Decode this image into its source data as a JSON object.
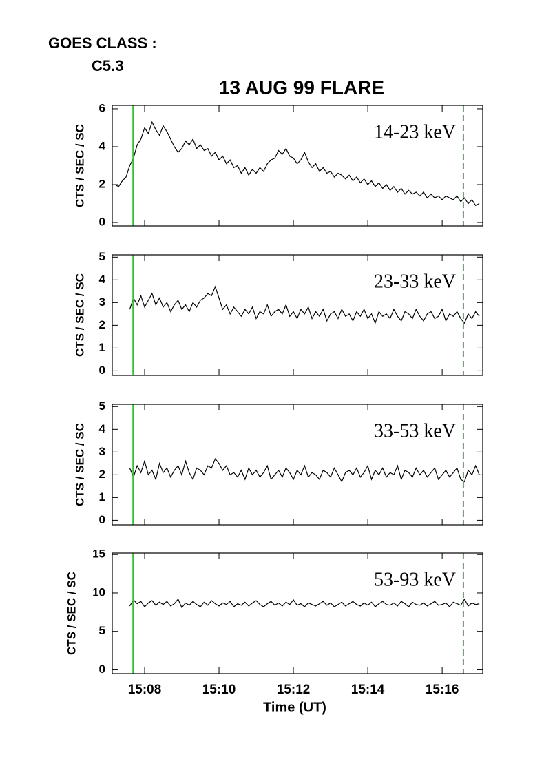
{
  "header": {
    "label": "GOES CLASS :",
    "value": "C5.3"
  },
  "chart_data": [
    {
      "type": "line",
      "title": "13 AUG 99 FLARE",
      "ylabel": "CTS / SEC / SC",
      "annotation": "14-23 keV",
      "x": [
        7.2,
        7.3,
        7.4,
        7.5,
        7.6,
        7.7,
        7.8,
        7.9,
        8.0,
        8.1,
        8.2,
        8.3,
        8.4,
        8.5,
        8.6,
        8.7,
        8.8,
        8.9,
        9.0,
        9.1,
        9.2,
        9.3,
        9.4,
        9.5,
        9.6,
        9.7,
        9.8,
        9.9,
        10.0,
        10.1,
        10.2,
        10.3,
        10.4,
        10.5,
        10.6,
        10.7,
        10.8,
        10.9,
        11.0,
        11.1,
        11.2,
        11.3,
        11.4,
        11.5,
        11.6,
        11.7,
        11.8,
        11.9,
        12.0,
        12.1,
        12.2,
        12.3,
        12.4,
        12.5,
        12.6,
        12.7,
        12.8,
        12.9,
        13.0,
        13.1,
        13.2,
        13.3,
        13.4,
        13.5,
        13.6,
        13.7,
        13.8,
        13.9,
        14.0,
        14.1,
        14.2,
        14.3,
        14.4,
        14.5,
        14.6,
        14.7,
        14.8,
        14.9,
        15.0,
        15.1,
        15.2,
        15.3,
        15.4,
        15.5,
        15.6,
        15.7,
        15.8,
        15.9,
        16.0,
        16.1,
        16.2,
        16.3,
        16.4,
        16.5,
        16.6,
        16.7,
        16.8,
        16.9,
        17.0
      ],
      "values": [
        2.0,
        1.9,
        2.2,
        2.4,
        3.0,
        3.4,
        4.1,
        4.4,
        5.0,
        4.7,
        5.3,
        4.9,
        4.6,
        5.1,
        4.8,
        4.4,
        4.0,
        3.7,
        3.9,
        4.3,
        4.1,
        4.4,
        3.9,
        4.1,
        3.8,
        3.9,
        3.5,
        3.7,
        3.3,
        3.5,
        3.1,
        3.3,
        2.9,
        3.0,
        2.6,
        2.9,
        2.5,
        2.8,
        2.6,
        2.9,
        2.7,
        3.1,
        3.3,
        3.4,
        3.8,
        3.6,
        3.9,
        3.5,
        3.4,
        3.1,
        3.3,
        3.7,
        3.2,
        2.9,
        3.1,
        2.7,
        2.9,
        2.6,
        2.7,
        2.4,
        2.6,
        2.5,
        2.3,
        2.5,
        2.2,
        2.4,
        2.1,
        2.3,
        2.0,
        2.2,
        1.9,
        2.1,
        1.8,
        2.0,
        1.7,
        1.9,
        1.6,
        1.8,
        1.5,
        1.7,
        1.5,
        1.6,
        1.4,
        1.6,
        1.3,
        1.5,
        1.3,
        1.4,
        1.2,
        1.4,
        1.3,
        1.2,
        1.4,
        1.1,
        1.3,
        1.0,
        1.2,
        0.9,
        1.0
      ],
      "color": "#000000",
      "xlim": [
        7.13,
        17.09
      ],
      "ylim": [
        -0.18,
        6.18
      ],
      "yticks": [
        0,
        2,
        4,
        6
      ],
      "xticks": [
        {
          "value": 8,
          "label": "15:08"
        },
        {
          "value": 10,
          "label": "15:10"
        },
        {
          "value": 12,
          "label": "15:12"
        },
        {
          "value": 14,
          "label": "15:14"
        },
        {
          "value": 16,
          "label": "15:16"
        }
      ],
      "xtick_labels": false,
      "marker_color": "#22cc22",
      "markers": [
        {
          "x": 7.69,
          "style": "solid"
        },
        {
          "x": 16.57,
          "style": "dashed"
        }
      ]
    },
    {
      "type": "line",
      "ylabel": "CTS / SEC / SC",
      "annotation": "23-33 keV",
      "x": [
        7.6,
        7.7,
        7.8,
        7.9,
        8.0,
        8.1,
        8.2,
        8.3,
        8.4,
        8.5,
        8.6,
        8.7,
        8.8,
        8.9,
        9.0,
        9.1,
        9.2,
        9.3,
        9.4,
        9.5,
        9.6,
        9.7,
        9.8,
        9.9,
        10.0,
        10.1,
        10.2,
        10.3,
        10.4,
        10.5,
        10.6,
        10.7,
        10.8,
        10.9,
        11.0,
        11.1,
        11.2,
        11.3,
        11.4,
        11.5,
        11.6,
        11.7,
        11.8,
        11.9,
        12.0,
        12.1,
        12.2,
        12.3,
        12.4,
        12.5,
        12.6,
        12.7,
        12.8,
        12.9,
        13.0,
        13.1,
        13.2,
        13.3,
        13.4,
        13.5,
        13.6,
        13.7,
        13.8,
        13.9,
        14.0,
        14.1,
        14.2,
        14.3,
        14.4,
        14.5,
        14.6,
        14.7,
        14.8,
        14.9,
        15.0,
        15.1,
        15.2,
        15.3,
        15.4,
        15.5,
        15.6,
        15.7,
        15.8,
        15.9,
        16.0,
        16.1,
        16.2,
        16.3,
        16.4,
        16.5,
        16.6,
        16.7,
        16.8,
        16.9,
        17.0
      ],
      "values": [
        2.7,
        3.2,
        2.9,
        3.3,
        2.8,
        3.1,
        3.4,
        2.9,
        3.2,
        2.8,
        3.0,
        2.6,
        2.9,
        3.1,
        2.7,
        2.9,
        2.6,
        3.0,
        2.8,
        3.1,
        3.2,
        3.4,
        3.3,
        3.7,
        3.2,
        2.7,
        2.9,
        2.5,
        2.8,
        2.6,
        2.4,
        2.7,
        2.5,
        2.8,
        2.3,
        2.6,
        2.5,
        2.9,
        2.4,
        2.6,
        2.7,
        2.5,
        2.9,
        2.4,
        2.6,
        2.3,
        2.7,
        2.5,
        2.8,
        2.3,
        2.6,
        2.4,
        2.7,
        2.2,
        2.5,
        2.6,
        2.3,
        2.7,
        2.4,
        2.5,
        2.2,
        2.6,
        2.4,
        2.7,
        2.3,
        2.5,
        2.1,
        2.6,
        2.4,
        2.5,
        2.3,
        2.7,
        2.4,
        2.2,
        2.6,
        2.5,
        2.3,
        2.7,
        2.4,
        2.2,
        2.5,
        2.6,
        2.3,
        2.4,
        2.7,
        2.2,
        2.5,
        2.4,
        2.6,
        2.3,
        2.1,
        2.5,
        2.3,
        2.6,
        2.4
      ],
      "color": "#000000",
      "xlim": [
        7.13,
        17.09
      ],
      "ylim": [
        -0.2,
        5.1
      ],
      "yticks": [
        0,
        1,
        2,
        3,
        4,
        5
      ],
      "xticks": [
        {
          "value": 8,
          "label": "15:08"
        },
        {
          "value": 10,
          "label": "15:10"
        },
        {
          "value": 12,
          "label": "15:12"
        },
        {
          "value": 14,
          "label": "15:14"
        },
        {
          "value": 16,
          "label": "15:16"
        }
      ],
      "xtick_labels": false,
      "marker_color": "#22cc22",
      "markers": [
        {
          "x": 7.69,
          "style": "solid"
        },
        {
          "x": 16.57,
          "style": "dashed"
        }
      ]
    },
    {
      "type": "line",
      "ylabel": "CTS / SEC / SC",
      "annotation": "33-53 keV",
      "x": [
        7.6,
        7.7,
        7.8,
        7.9,
        8.0,
        8.1,
        8.2,
        8.3,
        8.4,
        8.5,
        8.6,
        8.7,
        8.8,
        8.9,
        9.0,
        9.1,
        9.2,
        9.3,
        9.4,
        9.5,
        9.6,
        9.7,
        9.8,
        9.9,
        10.0,
        10.1,
        10.2,
        10.3,
        10.4,
        10.5,
        10.6,
        10.7,
        10.8,
        10.9,
        11.0,
        11.1,
        11.2,
        11.3,
        11.4,
        11.5,
        11.6,
        11.7,
        11.8,
        11.9,
        12.0,
        12.1,
        12.2,
        12.3,
        12.4,
        12.5,
        12.6,
        12.7,
        12.8,
        12.9,
        13.0,
        13.1,
        13.2,
        13.3,
        13.4,
        13.5,
        13.6,
        13.7,
        13.8,
        13.9,
        14.0,
        14.1,
        14.2,
        14.3,
        14.4,
        14.5,
        14.6,
        14.7,
        14.8,
        14.9,
        15.0,
        15.1,
        15.2,
        15.3,
        15.4,
        15.5,
        15.6,
        15.7,
        15.8,
        15.9,
        16.0,
        16.1,
        16.2,
        16.3,
        16.4,
        16.5,
        16.6,
        16.7,
        16.8,
        16.9,
        17.0
      ],
      "values": [
        2.3,
        1.9,
        2.4,
        2.1,
        2.6,
        2.0,
        2.2,
        1.8,
        2.5,
        2.1,
        2.3,
        1.9,
        2.2,
        2.4,
        2.0,
        2.6,
        2.1,
        1.8,
        2.3,
        2.2,
        2.0,
        2.4,
        2.3,
        2.7,
        2.5,
        2.2,
        2.4,
        2.0,
        2.1,
        1.9,
        2.2,
        1.8,
        2.3,
        2.0,
        2.2,
        1.9,
        2.1,
        2.4,
        1.8,
        2.0,
        2.2,
        1.9,
        2.3,
        2.1,
        1.8,
        2.2,
        2.0,
        2.4,
        1.9,
        2.1,
        2.0,
        1.8,
        2.2,
        2.1,
        1.9,
        2.3,
        2.0,
        1.7,
        2.1,
        2.2,
        2.0,
        2.3,
        1.9,
        2.1,
        2.4,
        1.8,
        2.2,
        2.0,
        2.3,
        1.9,
        2.1,
        2.0,
        2.4,
        1.8,
        2.2,
        2.1,
        1.9,
        2.3,
        2.0,
        2.2,
        1.9,
        2.1,
        2.3,
        1.8,
        2.0,
        2.2,
        1.9,
        2.1,
        2.3,
        1.8,
        1.7,
        2.2,
        2.0,
        2.4,
        2.0
      ],
      "color": "#000000",
      "xlim": [
        7.13,
        17.09
      ],
      "ylim": [
        -0.2,
        5.1
      ],
      "yticks": [
        0,
        1,
        2,
        3,
        4,
        5
      ],
      "xticks": [
        {
          "value": 8,
          "label": "15:08"
        },
        {
          "value": 10,
          "label": "15:10"
        },
        {
          "value": 12,
          "label": "15:12"
        },
        {
          "value": 14,
          "label": "15:14"
        },
        {
          "value": 16,
          "label": "15:16"
        }
      ],
      "xtick_labels": false,
      "marker_color": "#22cc22",
      "markers": [
        {
          "x": 7.69,
          "style": "solid"
        },
        {
          "x": 16.57,
          "style": "dashed"
        }
      ]
    },
    {
      "type": "line",
      "ylabel": "CTS / SEC / SC",
      "annotation": "53-93 keV",
      "xlabel": "Time (UT)",
      "x": [
        7.6,
        7.7,
        7.8,
        7.9,
        8.0,
        8.1,
        8.2,
        8.3,
        8.4,
        8.5,
        8.6,
        8.7,
        8.8,
        8.9,
        9.0,
        9.1,
        9.2,
        9.3,
        9.4,
        9.5,
        9.6,
        9.7,
        9.8,
        9.9,
        10.0,
        10.1,
        10.2,
        10.3,
        10.4,
        10.5,
        10.6,
        10.7,
        10.8,
        10.9,
        11.0,
        11.1,
        11.2,
        11.3,
        11.4,
        11.5,
        11.6,
        11.7,
        11.8,
        11.9,
        12.0,
        12.1,
        12.2,
        12.3,
        12.4,
        12.5,
        12.6,
        12.7,
        12.8,
        12.9,
        13.0,
        13.1,
        13.2,
        13.3,
        13.4,
        13.5,
        13.6,
        13.7,
        13.8,
        13.9,
        14.0,
        14.1,
        14.2,
        14.3,
        14.4,
        14.5,
        14.6,
        14.7,
        14.8,
        14.9,
        15.0,
        15.1,
        15.2,
        15.3,
        15.4,
        15.5,
        15.6,
        15.7,
        15.8,
        15.9,
        16.0,
        16.1,
        16.2,
        16.3,
        16.4,
        16.5,
        16.6,
        16.7,
        16.8,
        16.9,
        17.0
      ],
      "values": [
        8.3,
        9.1,
        8.6,
        8.9,
        8.2,
        8.7,
        9.0,
        8.4,
        8.8,
        8.5,
        8.9,
        8.3,
        8.6,
        9.2,
        8.1,
        8.7,
        8.4,
        8.9,
        8.5,
        8.2,
        8.8,
        8.4,
        9.0,
        8.6,
        8.3,
        8.7,
        8.5,
        8.9,
        8.2,
        8.6,
        8.4,
        8.8,
        8.3,
        8.7,
        9.0,
        8.5,
        8.2,
        8.6,
        8.9,
        8.4,
        8.7,
        8.3,
        8.8,
        8.5,
        9.1,
        8.4,
        8.6,
        8.2,
        8.7,
        8.5,
        8.3,
        8.6,
        8.9,
        8.4,
        8.7,
        8.2,
        8.5,
        8.8,
        8.3,
        8.6,
        8.9,
        8.5,
        8.3,
        8.7,
        8.4,
        8.8,
        8.2,
        8.6,
        8.9,
        8.5,
        8.4,
        8.7,
        8.3,
        8.9,
        8.6,
        8.2,
        8.8,
        8.5,
        8.4,
        8.7,
        8.3,
        8.6,
        8.9,
        8.4,
        8.5,
        8.7,
        8.2,
        8.8,
        8.6,
        8.4,
        9.2,
        8.3,
        8.7,
        8.5,
        8.6
      ],
      "color": "#000000",
      "xlim": [
        7.13,
        17.09
      ],
      "ylim": [
        -0.5,
        15.2
      ],
      "yticks": [
        0,
        5,
        10,
        15
      ],
      "xticks": [
        {
          "value": 8,
          "label": "15:08"
        },
        {
          "value": 10,
          "label": "15:10"
        },
        {
          "value": 12,
          "label": "15:12"
        },
        {
          "value": 14,
          "label": "15:14"
        },
        {
          "value": 16,
          "label": "15:16"
        }
      ],
      "xtick_labels": true,
      "marker_color": "#22cc22",
      "markers": [
        {
          "x": 7.69,
          "style": "solid"
        },
        {
          "x": 16.57,
          "style": "dashed"
        }
      ]
    }
  ]
}
